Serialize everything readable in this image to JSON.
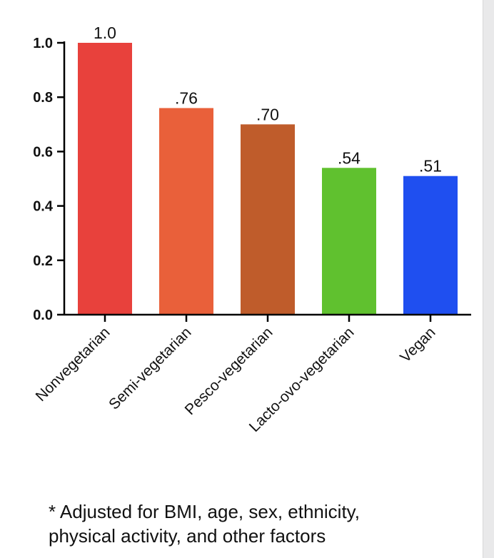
{
  "chart_data": {
    "type": "bar",
    "categories": [
      "Nonvegetarian",
      "Semi-vegetarian",
      "Pesco-vegetarian",
      "Lacto-ovo-vegetarian",
      "Vegan"
    ],
    "values": [
      1.0,
      0.76,
      0.7,
      0.54,
      0.51
    ],
    "value_labels": [
      "1.0",
      ".76",
      ".70",
      ".54",
      ".51"
    ],
    "colors": [
      "#e8413c",
      "#e9603a",
      "#bf5c2b",
      "#60c12f",
      "#1f4ff0"
    ],
    "ylim": [
      0,
      1.0
    ],
    "yticks": [
      0.0,
      0.2,
      0.4,
      0.6,
      0.8,
      1.0
    ],
    "ytick_labels": [
      "0.0",
      "0.2",
      "0.4",
      "0.6",
      "0.8",
      "1.0"
    ],
    "title": "",
    "xlabel": "",
    "ylabel": ""
  },
  "footnote": {
    "line1": "* Adjusted for BMI, age, sex, ethnicity,",
    "line2": "physical activity, and other factors"
  }
}
